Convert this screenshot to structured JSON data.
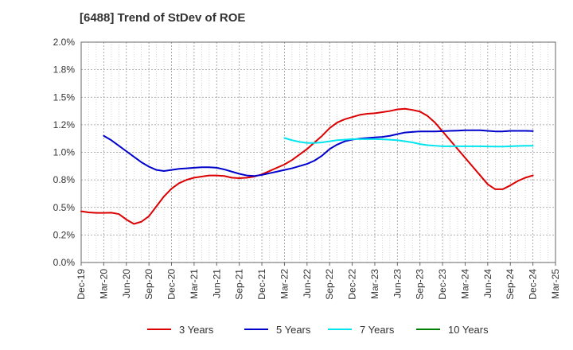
{
  "chart_data": {
    "type": "line",
    "title": "[6488]  Trend of StDev of ROE",
    "xlabel": "",
    "ylabel": "",
    "ylim": [
      0.0,
      2.0
    ],
    "yticks": [
      "0.0%",
      "0.2%",
      "0.5%",
      "0.8%",
      "1.0%",
      "1.2%",
      "1.5%",
      "1.8%",
      "2.0%"
    ],
    "x_ticks": [
      "Dec-19",
      "Mar-20",
      "Jun-20",
      "Sep-20",
      "Dec-20",
      "Mar-21",
      "Jun-21",
      "Sep-21",
      "Dec-21",
      "Mar-22",
      "Jun-22",
      "Sep-22",
      "Dec-22",
      "Mar-23",
      "Jun-23",
      "Sep-23",
      "Dec-23",
      "Mar-24",
      "Jun-24",
      "Sep-24",
      "Dec-24",
      "Mar-25"
    ],
    "grid": true,
    "legend_position": "bottom",
    "series": [
      {
        "name": "3 Years",
        "color": "#dd0000",
        "points": [
          [
            "Dec-19",
            0.465
          ],
          [
            "Jan-20",
            0.455
          ],
          [
            "Feb-20",
            0.45
          ],
          [
            "Mar-20",
            0.45
          ],
          [
            "Apr-20",
            0.452
          ],
          [
            "May-20",
            0.44
          ],
          [
            "Jun-20",
            0.39
          ],
          [
            "Jul-20",
            0.35
          ],
          [
            "Aug-20",
            0.37
          ],
          [
            "Sep-20",
            0.42
          ],
          [
            "Oct-20",
            0.51
          ],
          [
            "Nov-20",
            0.6
          ],
          [
            "Dec-20",
            0.67
          ],
          [
            "Jan-21",
            0.72
          ],
          [
            "Feb-21",
            0.75
          ],
          [
            "Mar-21",
            0.77
          ],
          [
            "Apr-21",
            0.78
          ],
          [
            "May-21",
            0.79
          ],
          [
            "Jun-21",
            0.79
          ],
          [
            "Jul-21",
            0.785
          ],
          [
            "Aug-21",
            0.77
          ],
          [
            "Sep-21",
            0.765
          ],
          [
            "Oct-21",
            0.77
          ],
          [
            "Nov-21",
            0.78
          ],
          [
            "Dec-21",
            0.8
          ],
          [
            "Jan-22",
            0.83
          ],
          [
            "Feb-22",
            0.86
          ],
          [
            "Mar-22",
            0.89
          ],
          [
            "Apr-22",
            0.93
          ],
          [
            "May-22",
            0.98
          ],
          [
            "Jun-22",
            1.03
          ],
          [
            "Jul-22",
            1.09
          ],
          [
            "Aug-22",
            1.15
          ],
          [
            "Sep-22",
            1.22
          ],
          [
            "Oct-22",
            1.27
          ],
          [
            "Nov-22",
            1.3
          ],
          [
            "Dec-22",
            1.32
          ],
          [
            "Jan-23",
            1.34
          ],
          [
            "Feb-23",
            1.35
          ],
          [
            "Mar-23",
            1.355
          ],
          [
            "Apr-23",
            1.365
          ],
          [
            "May-23",
            1.375
          ],
          [
            "Jun-23",
            1.39
          ],
          [
            "Jul-23",
            1.395
          ],
          [
            "Aug-23",
            1.385
          ],
          [
            "Sep-23",
            1.37
          ],
          [
            "Oct-23",
            1.33
          ],
          [
            "Nov-23",
            1.27
          ],
          [
            "Dec-23",
            1.19
          ],
          [
            "Jan-24",
            1.11
          ],
          [
            "Feb-24",
            1.03
          ],
          [
            "Mar-24",
            0.95
          ],
          [
            "Apr-24",
            0.87
          ],
          [
            "May-24",
            0.79
          ],
          [
            "Jun-24",
            0.71
          ],
          [
            "Jul-24",
            0.665
          ],
          [
            "Aug-24",
            0.665
          ],
          [
            "Sep-24",
            0.7
          ],
          [
            "Oct-24",
            0.74
          ],
          [
            "Nov-24",
            0.77
          ],
          [
            "Dec-24",
            0.79
          ]
        ]
      },
      {
        "name": "5 Years",
        "color": "#0000cc",
        "points": [
          [
            "Mar-20",
            1.15
          ],
          [
            "Apr-20",
            1.11
          ],
          [
            "May-20",
            1.06
          ],
          [
            "Jun-20",
            1.01
          ],
          [
            "Jul-20",
            0.96
          ],
          [
            "Aug-20",
            0.91
          ],
          [
            "Sep-20",
            0.87
          ],
          [
            "Oct-20",
            0.84
          ],
          [
            "Nov-20",
            0.83
          ],
          [
            "Dec-20",
            0.84
          ],
          [
            "Jan-21",
            0.85
          ],
          [
            "Feb-21",
            0.855
          ],
          [
            "Mar-21",
            0.86
          ],
          [
            "Apr-21",
            0.865
          ],
          [
            "May-21",
            0.865
          ],
          [
            "Jun-21",
            0.86
          ],
          [
            "Jul-21",
            0.845
          ],
          [
            "Aug-21",
            0.825
          ],
          [
            "Sep-21",
            0.805
          ],
          [
            "Oct-21",
            0.79
          ],
          [
            "Nov-21",
            0.785
          ],
          [
            "Dec-21",
            0.795
          ],
          [
            "Jan-22",
            0.81
          ],
          [
            "Feb-22",
            0.825
          ],
          [
            "Mar-22",
            0.84
          ],
          [
            "Apr-22",
            0.855
          ],
          [
            "May-22",
            0.875
          ],
          [
            "Jun-22",
            0.895
          ],
          [
            "Jul-22",
            0.925
          ],
          [
            "Aug-22",
            0.97
          ],
          [
            "Sep-22",
            1.03
          ],
          [
            "Oct-22",
            1.07
          ],
          [
            "Nov-22",
            1.1
          ],
          [
            "Dec-22",
            1.115
          ],
          [
            "Jan-23",
            1.125
          ],
          [
            "Feb-23",
            1.13
          ],
          [
            "Mar-23",
            1.135
          ],
          [
            "Apr-23",
            1.14
          ],
          [
            "May-23",
            1.15
          ],
          [
            "Jun-23",
            1.165
          ],
          [
            "Jul-23",
            1.18
          ],
          [
            "Aug-23",
            1.185
          ],
          [
            "Sep-23",
            1.19
          ],
          [
            "Oct-23",
            1.19
          ],
          [
            "Nov-23",
            1.19
          ],
          [
            "Dec-23",
            1.192
          ],
          [
            "Jan-24",
            1.195
          ],
          [
            "Feb-24",
            1.197
          ],
          [
            "Mar-24",
            1.2
          ],
          [
            "Apr-24",
            1.2
          ],
          [
            "May-24",
            1.2
          ],
          [
            "Jun-24",
            1.195
          ],
          [
            "Jul-24",
            1.19
          ],
          [
            "Aug-24",
            1.19
          ],
          [
            "Sep-24",
            1.195
          ],
          [
            "Oct-24",
            1.195
          ],
          [
            "Nov-24",
            1.195
          ],
          [
            "Dec-24",
            1.193
          ]
        ]
      },
      {
        "name": "7 Years",
        "color": "#00e5ee",
        "points": [
          [
            "Mar-22",
            1.13
          ],
          [
            "Apr-22",
            1.11
          ],
          [
            "May-22",
            1.095
          ],
          [
            "Jun-22",
            1.085
          ],
          [
            "Jul-22",
            1.085
          ],
          [
            "Aug-22",
            1.09
          ],
          [
            "Sep-22",
            1.1
          ],
          [
            "Oct-22",
            1.11
          ],
          [
            "Nov-22",
            1.115
          ],
          [
            "Dec-22",
            1.12
          ],
          [
            "Jan-23",
            1.12
          ],
          [
            "Feb-23",
            1.12
          ],
          [
            "Mar-23",
            1.12
          ],
          [
            "Apr-23",
            1.118
          ],
          [
            "May-23",
            1.115
          ],
          [
            "Jun-23",
            1.11
          ],
          [
            "Jul-23",
            1.1
          ],
          [
            "Aug-23",
            1.09
          ],
          [
            "Sep-23",
            1.075
          ],
          [
            "Oct-23",
            1.065
          ],
          [
            "Nov-23",
            1.06
          ],
          [
            "Dec-23",
            1.055
          ],
          [
            "Jan-24",
            1.055
          ],
          [
            "Feb-24",
            1.055
          ],
          [
            "Mar-24",
            1.055
          ],
          [
            "Apr-24",
            1.055
          ],
          [
            "May-24",
            1.055
          ],
          [
            "Jun-24",
            1.053
          ],
          [
            "Jul-24",
            1.052
          ],
          [
            "Aug-24",
            1.052
          ],
          [
            "Sep-24",
            1.055
          ],
          [
            "Oct-24",
            1.058
          ],
          [
            "Nov-24",
            1.06
          ],
          [
            "Dec-24",
            1.06
          ]
        ]
      },
      {
        "name": "10 Years",
        "color": "#008000",
        "points": []
      }
    ]
  }
}
